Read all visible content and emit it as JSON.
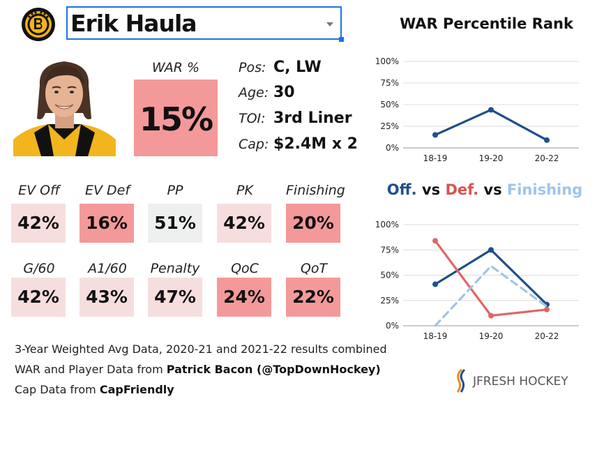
{
  "player": {
    "name": "Erik Haula",
    "war_label": "WAR %",
    "war_value": "15%",
    "war_color": "#f4999a",
    "info": [
      {
        "key": "Pos:",
        "value": "C, LW"
      },
      {
        "key": "Age:",
        "value": "30"
      },
      {
        "key": "TOI:",
        "value": "3rd Liner"
      },
      {
        "key": "Cap:",
        "value": "$2.4M x 2"
      }
    ]
  },
  "stats_row1": [
    {
      "label": "EV Off",
      "value": "42%",
      "color": "#f7dede"
    },
    {
      "label": "EV Def",
      "value": "16%",
      "color": "#f4999a"
    },
    {
      "label": "PP",
      "value": "51%",
      "color": "#eef0ef"
    },
    {
      "label": "PK",
      "value": "42%",
      "color": "#f7dede"
    },
    {
      "label": "Finishing",
      "value": "20%",
      "color": "#f4999a"
    }
  ],
  "stats_row2": [
    {
      "label": "G/60",
      "value": "42%",
      "color": "#f7dede"
    },
    {
      "label": "A1/60",
      "value": "43%",
      "color": "#f7dede"
    },
    {
      "label": "Penalty",
      "value": "47%",
      "color": "#f7dede"
    },
    {
      "label": "QoC",
      "value": "24%",
      "color": "#f4999a"
    },
    {
      "label": "QoT",
      "value": "22%",
      "color": "#f4999a"
    }
  ],
  "footer": {
    "line1": "3-Year Weighted Avg Data, 2020-21 and 2021-22 results combined",
    "line2_prefix": "WAR and Player Data from ",
    "line2_bold": "Patrick Bacon (@TopDownHockey)",
    "line3_prefix": "Cap Data from ",
    "line3_bold": "CapFriendly"
  },
  "brand": {
    "text": "JFRESH HOCKEY"
  },
  "chart_data": [
    {
      "type": "line",
      "title": "WAR Percentile Rank",
      "categories": [
        "18-19",
        "19-20",
        "20-22"
      ],
      "ylim": [
        0,
        100
      ],
      "yticks": [
        "0%",
        "25%",
        "50%",
        "75%",
        "100%"
      ],
      "series": [
        {
          "values": [
            15,
            44,
            9
          ],
          "color": "#1f4e8c",
          "dash": false
        }
      ],
      "grid": "horizontal"
    },
    {
      "type": "line",
      "title_parts": [
        {
          "text": "Off.",
          "color": "#1f4e8c"
        },
        {
          "text": " vs ",
          "color": "#111111"
        },
        {
          "text": "Def.",
          "color": "#d9534f"
        },
        {
          "text": " vs ",
          "color": "#111111"
        },
        {
          "text": "Finishing",
          "color": "#9fc5e8"
        }
      ],
      "categories": [
        "18-19",
        "19-20",
        "20-22"
      ],
      "ylim": [
        0,
        100
      ],
      "yticks": [
        "0%",
        "25%",
        "50%",
        "75%",
        "100%"
      ],
      "series": [
        {
          "values": [
            41,
            75,
            21
          ],
          "color": "#1f4e8c",
          "dash": false
        },
        {
          "values": [
            84,
            10,
            16
          ],
          "color": "#e06666",
          "dash": false
        },
        {
          "values": [
            0,
            59,
            19
          ],
          "color": "#9fc5e8",
          "dash": true
        }
      ],
      "grid": "horizontal"
    }
  ]
}
